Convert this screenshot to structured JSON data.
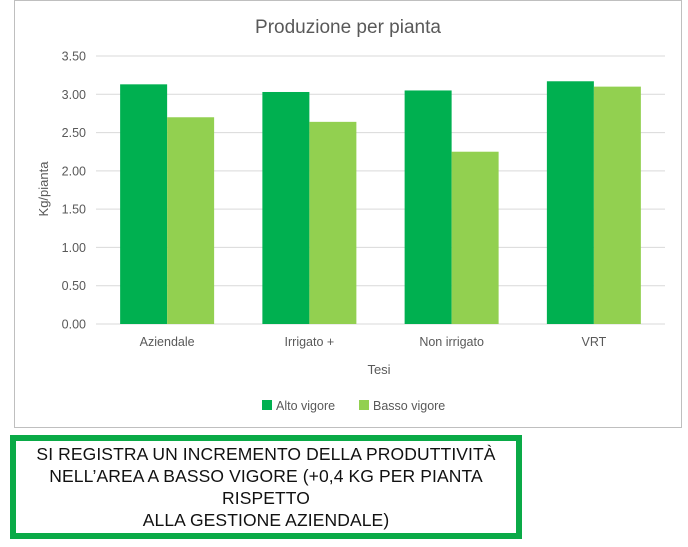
{
  "chart_data": {
    "type": "bar",
    "title": "Produzione per pianta",
    "xlabel": "Tesi",
    "ylabel": "Kg/pianta",
    "categories": [
      "Aziendale",
      "Irrigato +",
      "Non irrigato",
      "VRT"
    ],
    "series": [
      {
        "name": "Alto vigore",
        "values": [
          3.13,
          3.03,
          3.05,
          3.17
        ],
        "color": "#00b050"
      },
      {
        "name": "Basso vigore",
        "values": [
          2.7,
          2.64,
          2.25,
          3.1
        ],
        "color": "#92d050"
      }
    ],
    "ylim": [
      0,
      3.5
    ],
    "yticks": [
      "0.00",
      "0.50",
      "1.00",
      "1.50",
      "2.00",
      "2.50",
      "3.00",
      "3.50"
    ],
    "grid": true,
    "legend_position": "bottom"
  },
  "note": {
    "line1": "SI REGISTRA UN INCREMENTO DELLA PRODUTTIVITÀ",
    "line2": "NELL’AREA A BASSO VIGORE (+0,4 KG PER PIANTA RISPETTO",
    "line3": "ALLA GESTIONE AZIENDALE)",
    "border_color": "#0aaa47"
  }
}
